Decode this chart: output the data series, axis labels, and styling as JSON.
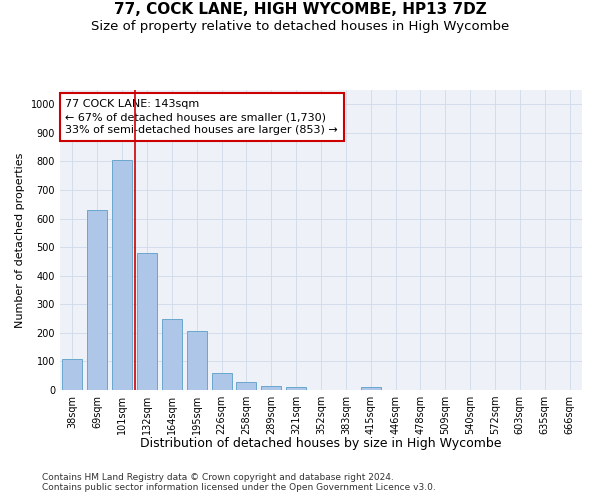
{
  "title": "77, COCK LANE, HIGH WYCOMBE, HP13 7DZ",
  "subtitle": "Size of property relative to detached houses in High Wycombe",
  "xlabel": "Distribution of detached houses by size in High Wycombe",
  "ylabel": "Number of detached properties",
  "categories": [
    "38sqm",
    "69sqm",
    "101sqm",
    "132sqm",
    "164sqm",
    "195sqm",
    "226sqm",
    "258sqm",
    "289sqm",
    "321sqm",
    "352sqm",
    "383sqm",
    "415sqm",
    "446sqm",
    "478sqm",
    "509sqm",
    "540sqm",
    "572sqm",
    "603sqm",
    "635sqm",
    "666sqm"
  ],
  "values": [
    110,
    630,
    805,
    480,
    250,
    205,
    60,
    27,
    15,
    10,
    0,
    0,
    12,
    0,
    0,
    0,
    0,
    0,
    0,
    0,
    0
  ],
  "bar_color": "#aec6e8",
  "bar_edge_color": "#5a9fc8",
  "vline_color": "#cc0000",
  "vline_x": 2.5,
  "annotation_text": "77 COCK LANE: 143sqm\n← 67% of detached houses are smaller (1,730)\n33% of semi-detached houses are larger (853) →",
  "annotation_box_edge_color": "#cc0000",
  "ylim": [
    0,
    1050
  ],
  "yticks": [
    0,
    100,
    200,
    300,
    400,
    500,
    600,
    700,
    800,
    900,
    1000
  ],
  "grid_color": "#d0daea",
  "background_color": "#eef2f8",
  "footer_line1": "Contains HM Land Registry data © Crown copyright and database right 2024.",
  "footer_line2": "Contains public sector information licensed under the Open Government Licence v3.0.",
  "title_fontsize": 11,
  "subtitle_fontsize": 9.5,
  "xlabel_fontsize": 9,
  "ylabel_fontsize": 8,
  "tick_fontsize": 7,
  "annotation_fontsize": 8,
  "footer_fontsize": 6.5
}
